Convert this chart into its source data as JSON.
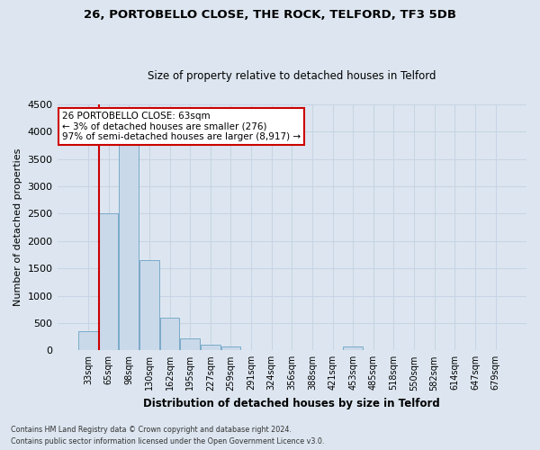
{
  "title_line1": "26, PORTOBELLO CLOSE, THE ROCK, TELFORD, TF3 5DB",
  "title_line2": "Size of property relative to detached houses in Telford",
  "xlabel": "Distribution of detached houses by size in Telford",
  "ylabel": "Number of detached properties",
  "categories": [
    "33sqm",
    "65sqm",
    "98sqm",
    "130sqm",
    "162sqm",
    "195sqm",
    "227sqm",
    "259sqm",
    "291sqm",
    "324sqm",
    "356sqm",
    "388sqm",
    "421sqm",
    "453sqm",
    "485sqm",
    "518sqm",
    "550sqm",
    "582sqm",
    "614sqm",
    "647sqm",
    "679sqm"
  ],
  "values": [
    350,
    2500,
    3750,
    1650,
    600,
    220,
    100,
    65,
    0,
    0,
    0,
    0,
    0,
    65,
    0,
    0,
    0,
    0,
    0,
    0,
    0
  ],
  "bar_color": "#c9d9ea",
  "bar_edge_color": "#7aaac8",
  "highlight_color": "#cc0000",
  "ylim": [
    0,
    4500
  ],
  "yticks": [
    0,
    500,
    1000,
    1500,
    2000,
    2500,
    3000,
    3500,
    4000,
    4500
  ],
  "annotation_text": "26 PORTOBELLO CLOSE: 63sqm\n← 3% of detached houses are smaller (276)\n97% of semi-detached houses are larger (8,917) →",
  "annotation_box_color": "#ffffff",
  "annotation_box_edge_color": "#cc0000",
  "footer_line1": "Contains HM Land Registry data © Crown copyright and database right 2024.",
  "footer_line2": "Contains public sector information licensed under the Open Government Licence v3.0.",
  "grid_color": "#c8d4e4",
  "background_color": "#dde6f0"
}
